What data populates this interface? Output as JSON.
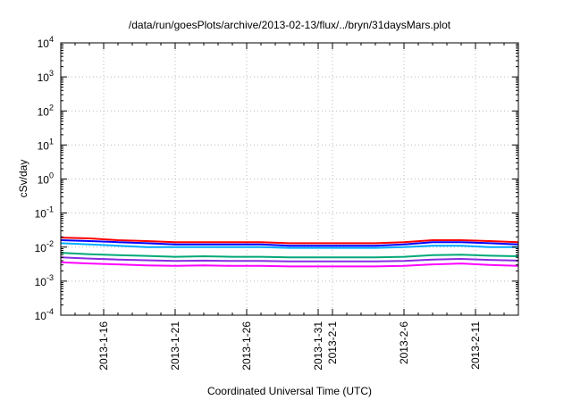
{
  "chart_data": {
    "type": "line",
    "title": "/data/run/goesPlots/archive/2013-02-13/flux/../bryn/31daysMars.plot",
    "xlabel": "Coordinated Universal Time (UTC)",
    "ylabel": "cSv/day",
    "yscale": "log",
    "ylim": [
      0.0001,
      10000
    ],
    "y_ticks": [
      {
        "value": 0.0001,
        "base": "10",
        "exp": "-4"
      },
      {
        "value": 0.001,
        "base": "10",
        "exp": "-3"
      },
      {
        "value": 0.01,
        "base": "10",
        "exp": "-2"
      },
      {
        "value": 0.1,
        "base": "10",
        "exp": "-1"
      },
      {
        "value": 1,
        "base": "10",
        "exp": "0"
      },
      {
        "value": 10,
        "base": "10",
        "exp": "1"
      },
      {
        "value": 100,
        "base": "10",
        "exp": "2"
      },
      {
        "value": 1000,
        "base": "10",
        "exp": "3"
      },
      {
        "value": 10000,
        "base": "10",
        "exp": "4"
      }
    ],
    "xlim": [
      "2013-01-13",
      "2013-02-14"
    ],
    "x_ticks": [
      {
        "date": "2013-01-16",
        "label": "2013-1-16"
      },
      {
        "date": "2013-01-21",
        "label": "2013-1-21"
      },
      {
        "date": "2013-01-26",
        "label": "2013-1-26"
      },
      {
        "date": "2013-01-31",
        "label": "2013-1-31"
      },
      {
        "date": "2013-02-01",
        "label": "2013-2-1"
      },
      {
        "date": "2013-02-06",
        "label": "2013-2-6"
      },
      {
        "date": "2013-02-11",
        "label": "2013-2-11"
      }
    ],
    "grid": true,
    "x": [
      "2013-01-13",
      "2013-01-15",
      "2013-01-17",
      "2013-01-19",
      "2013-01-21",
      "2013-01-23",
      "2013-01-25",
      "2013-01-27",
      "2013-01-29",
      "2013-01-31",
      "2013-02-02",
      "2013-02-04",
      "2013-02-06",
      "2013-02-08",
      "2013-02-10",
      "2013-02-12",
      "2013-02-14"
    ],
    "series": [
      {
        "color": "#ff0000",
        "values": [
          0.019,
          0.018,
          0.016,
          0.015,
          0.014,
          0.014,
          0.014,
          0.014,
          0.013,
          0.013,
          0.013,
          0.013,
          0.014,
          0.016,
          0.016,
          0.015,
          0.014
        ]
      },
      {
        "color": "#0000ff",
        "values": [
          0.016,
          0.015,
          0.014,
          0.013,
          0.012,
          0.012,
          0.012,
          0.012,
          0.011,
          0.011,
          0.011,
          0.011,
          0.012,
          0.014,
          0.014,
          0.013,
          0.012
        ]
      },
      {
        "color": "#00aaff",
        "values": [
          0.013,
          0.012,
          0.011,
          0.01,
          0.01,
          0.01,
          0.01,
          0.01,
          0.0095,
          0.0095,
          0.0095,
          0.0095,
          0.01,
          0.011,
          0.011,
          0.01,
          0.01
        ]
      },
      {
        "color": "#00a878",
        "values": [
          0.0068,
          0.0062,
          0.0058,
          0.0055,
          0.0052,
          0.0054,
          0.0052,
          0.0052,
          0.005,
          0.005,
          0.005,
          0.005,
          0.0052,
          0.0058,
          0.006,
          0.0056,
          0.0054
        ]
      },
      {
        "color": "#8a2be2",
        "values": [
          0.005,
          0.0046,
          0.0043,
          0.0041,
          0.0039,
          0.004,
          0.0039,
          0.0039,
          0.0038,
          0.0038,
          0.0038,
          0.0038,
          0.0039,
          0.0043,
          0.0045,
          0.0042,
          0.004
        ]
      },
      {
        "color": "#ff00ff",
        "values": [
          0.0036,
          0.0033,
          0.0031,
          0.0029,
          0.0028,
          0.0029,
          0.0028,
          0.0028,
          0.0027,
          0.0027,
          0.0027,
          0.0027,
          0.0028,
          0.0031,
          0.0033,
          0.003,
          0.0028
        ]
      }
    ]
  }
}
